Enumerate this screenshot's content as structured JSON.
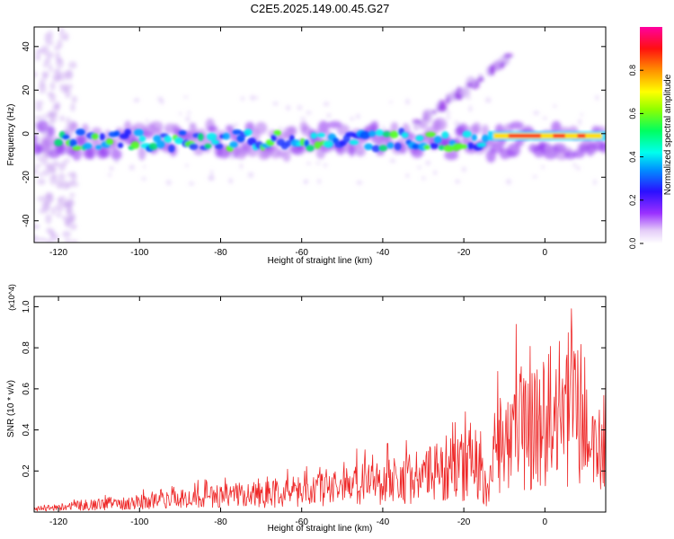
{
  "title": "C2E5.2025.149.00.45.G27",
  "colors": {
    "snr_line": "#ee2a2a",
    "frame": "#000000"
  },
  "chart_data": [
    {
      "type": "heatmap",
      "title": "C2E5.2025.149.00.45.G27",
      "xlabel": "Height of straight line (km)",
      "ylabel": "Frequency (Hz)",
      "xlim": [
        -126,
        15
      ],
      "ylim": [
        -50,
        49
      ],
      "x_ticks": [
        "-120",
        "-100",
        "-80",
        "-60",
        "-40",
        "-20",
        "0"
      ],
      "y_ticks": [
        "-40",
        "-20",
        "0",
        "20",
        "40"
      ],
      "colorbar": {
        "label": "Normalized spectral amplitude",
        "range": [
          0,
          1
        ],
        "ticks": [
          "0.0",
          "0.2",
          "0.4",
          "0.6",
          "0.8"
        ],
        "colormap": "rainbow (white-purple-blue-cyan-green-yellow-red-magenta)"
      },
      "features": [
        {
          "name": "main band",
          "x_range": [
            -126,
            15
          ],
          "frequency_center": -3,
          "frequency_halfwidth": 6
        },
        {
          "name": "strong signal",
          "x_range": [
            -14,
            15
          ],
          "frequency_center": -1,
          "amplitude": "0.8-1.0"
        },
        {
          "name": "rising sidebranch",
          "x_range": [
            -32,
            -8
          ],
          "frequency_range": [
            4,
            36
          ]
        }
      ]
    },
    {
      "type": "line",
      "xlabel": "Height of straight line (km)",
      "ylabel": "SNR (10 * v/v)",
      "y_multiplier": "(x10^4)",
      "xlim": [
        -126,
        15
      ],
      "ylim": [
        0,
        1.05
      ],
      "x_ticks": [
        "-120",
        "-100",
        "-80",
        "-60",
        "-40",
        "-20",
        "0"
      ],
      "y_ticks": [
        "0.2",
        "0.4",
        "0.6",
        "0.8",
        "1.0"
      ],
      "series": [
        {
          "x": [
            -126,
            -120,
            -115,
            -110,
            -105,
            -100,
            -95,
            -90,
            -85,
            -80,
            -75,
            -70,
            -65,
            -60,
            -55,
            -50,
            -45,
            -40,
            -35,
            -30,
            -25,
            -20,
            -17,
            -14,
            -12,
            -10,
            -8,
            -5,
            -2,
            0,
            3,
            5,
            7,
            9,
            11,
            13,
            15
          ],
          "y": [
            0.02,
            0.03,
            0.05,
            0.06,
            0.07,
            0.08,
            0.09,
            0.1,
            0.11,
            0.12,
            0.13,
            0.14,
            0.15,
            0.16,
            0.18,
            0.2,
            0.22,
            0.24,
            0.26,
            0.28,
            0.32,
            0.35,
            0.4,
            0.12,
            0.55,
            0.6,
            0.65,
            0.66,
            0.7,
            0.72,
            0.74,
            0.8,
            0.85,
            0.75,
            0.62,
            0.45,
            0.55
          ]
        }
      ]
    }
  ]
}
